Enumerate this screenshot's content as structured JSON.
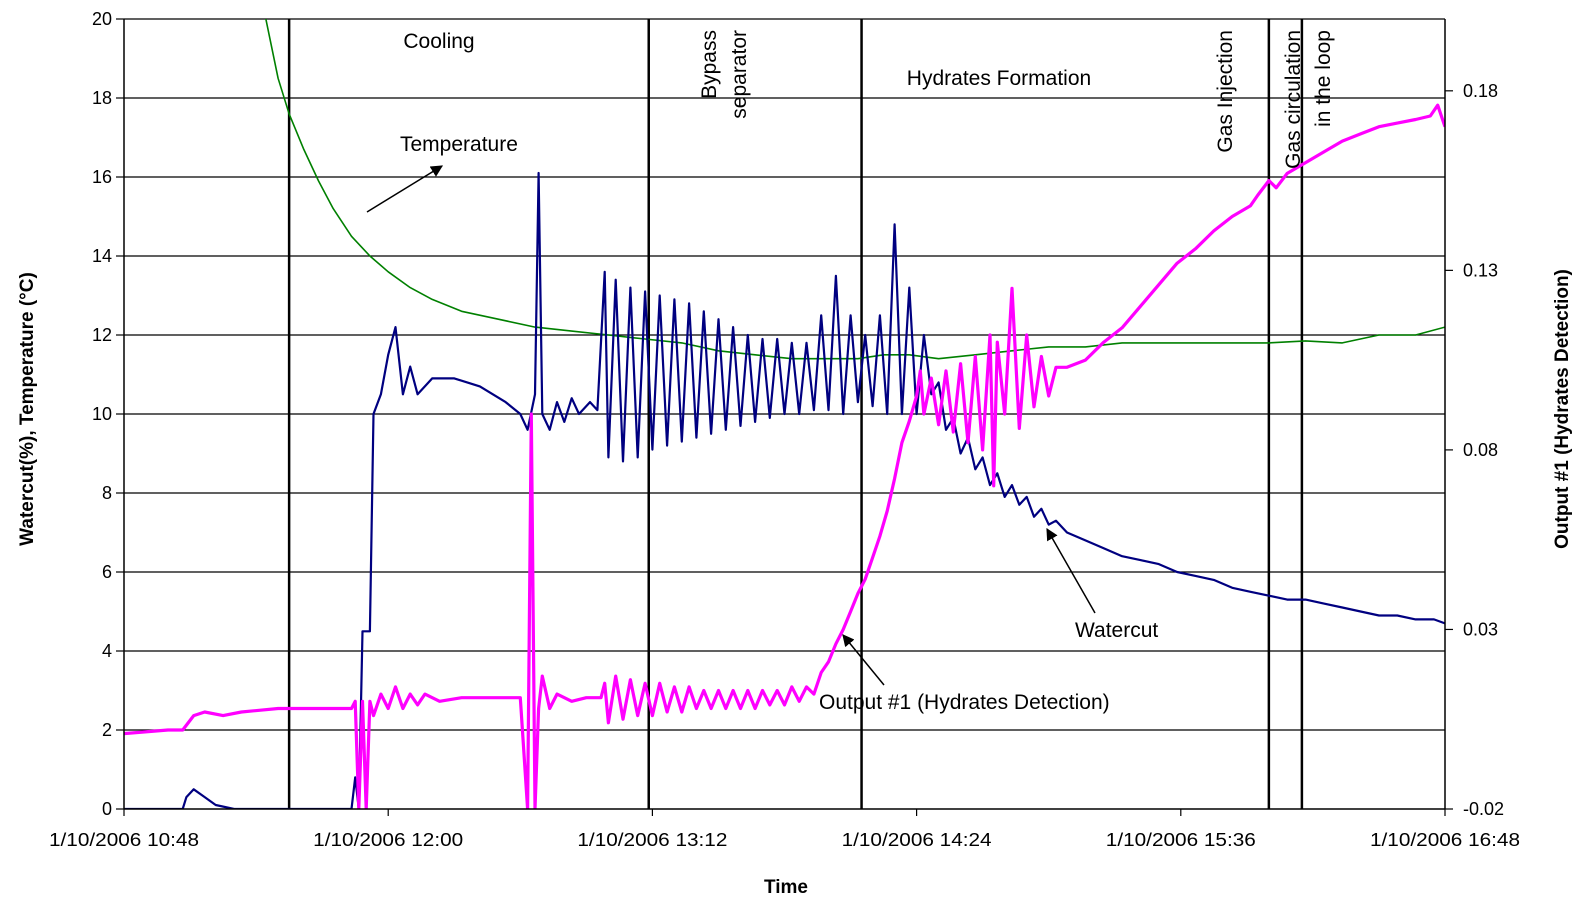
{
  "chart_data": {
    "type": "line",
    "title": "",
    "xlabel": "Time",
    "ylabel_left": "Watercut(%), Temperature (°C)",
    "ylabel_right": "Output #1 (Hydrates Detection)",
    "x_range_minutes": [
      648,
      1008
    ],
    "x_ticks": [
      {
        "t": 648,
        "label": "1/10/2006 10:48"
      },
      {
        "t": 720,
        "label": "1/10/2006 12:00"
      },
      {
        "t": 792,
        "label": "1/10/2006 13:12"
      },
      {
        "t": 864,
        "label": "1/10/2006 14:24"
      },
      {
        "t": 936,
        "label": "1/10/2006 15:36"
      },
      {
        "t": 1008,
        "label": "1/10/2006 16:48"
      }
    ],
    "y_left": {
      "min": 0,
      "max": 20,
      "ticks": [
        "0",
        "2",
        "4",
        "6",
        "8",
        "10",
        "12",
        "14",
        "16",
        "18",
        "20"
      ]
    },
    "y_right": {
      "min": -0.02,
      "max": 0.2,
      "ticks": [
        {
          "v": -0.02,
          "label": "-0.02"
        },
        {
          "v": 0.03,
          "label": "0.03"
        },
        {
          "v": 0.08,
          "label": "0.08"
        },
        {
          "v": 0.13,
          "label": "0.13"
        },
        {
          "v": 0.18,
          "label": "0.18"
        }
      ]
    },
    "grid": "horizontal",
    "phase_lines_t": [
      693,
      791,
      849,
      960,
      969
    ],
    "phase_labels": [
      {
        "text": "Cooling"
      },
      {
        "lines": [
          "Bypass",
          "separator"
        ]
      },
      {
        "text": "Hydrates Formation"
      },
      {
        "text": "Gas Injection"
      },
      {
        "lines": [
          "Gas circulation",
          "in the loop"
        ]
      }
    ],
    "series": [
      {
        "name": "Temperature",
        "axis": "left",
        "color": "#008000",
        "points": [
          [
            686,
            20.3
          ],
          [
            690,
            18.5
          ],
          [
            693,
            17.6
          ],
          [
            697,
            16.7
          ],
          [
            701,
            15.9
          ],
          [
            705,
            15.2
          ],
          [
            710,
            14.5
          ],
          [
            715,
            14.0
          ],
          [
            720,
            13.6
          ],
          [
            726,
            13.2
          ],
          [
            732,
            12.9
          ],
          [
            740,
            12.6
          ],
          [
            750,
            12.4
          ],
          [
            760,
            12.2
          ],
          [
            770,
            12.1
          ],
          [
            780,
            12.0
          ],
          [
            790,
            11.9
          ],
          [
            800,
            11.8
          ],
          [
            810,
            11.6
          ],
          [
            820,
            11.5
          ],
          [
            830,
            11.4
          ],
          [
            840,
            11.4
          ],
          [
            848,
            11.4
          ],
          [
            855,
            11.5
          ],
          [
            862,
            11.5
          ],
          [
            870,
            11.4
          ],
          [
            880,
            11.5
          ],
          [
            890,
            11.6
          ],
          [
            900,
            11.7
          ],
          [
            910,
            11.7
          ],
          [
            920,
            11.8
          ],
          [
            930,
            11.8
          ],
          [
            940,
            11.8
          ],
          [
            950,
            11.8
          ],
          [
            960,
            11.8
          ],
          [
            970,
            11.85
          ],
          [
            980,
            11.8
          ],
          [
            990,
            12.0
          ],
          [
            1000,
            12.0
          ],
          [
            1008,
            12.2
          ]
        ]
      },
      {
        "name": "Watercut",
        "axis": "left",
        "color": "#000080",
        "points": [
          [
            648,
            0
          ],
          [
            664,
            0
          ],
          [
            665,
            0.3
          ],
          [
            667,
            0.5
          ],
          [
            670,
            0.3
          ],
          [
            673,
            0.1
          ],
          [
            678,
            0
          ],
          [
            693,
            0
          ],
          [
            710,
            0
          ],
          [
            711,
            0.8
          ],
          [
            712,
            0
          ],
          [
            713,
            4.5
          ],
          [
            715,
            4.5
          ],
          [
            716,
            10
          ],
          [
            718,
            10.5
          ],
          [
            720,
            11.5
          ],
          [
            722,
            12.2
          ],
          [
            724,
            10.5
          ],
          [
            726,
            11.2
          ],
          [
            728,
            10.5
          ],
          [
            732,
            10.9
          ],
          [
            738,
            10.9
          ],
          [
            745,
            10.7
          ],
          [
            752,
            10.3
          ],
          [
            756,
            10.0
          ],
          [
            758,
            9.6
          ],
          [
            760,
            10.5
          ],
          [
            761,
            16.1
          ],
          [
            762,
            10.0
          ],
          [
            764,
            9.6
          ],
          [
            766,
            10.3
          ],
          [
            768,
            9.8
          ],
          [
            770,
            10.4
          ],
          [
            772,
            10.0
          ],
          [
            775,
            10.3
          ],
          [
            777,
            10.1
          ],
          [
            779,
            13.6
          ],
          [
            780,
            8.9
          ],
          [
            782,
            13.4
          ],
          [
            784,
            8.8
          ],
          [
            786,
            13.2
          ],
          [
            788,
            8.9
          ],
          [
            790,
            13.1
          ],
          [
            792,
            9.1
          ],
          [
            794,
            13.0
          ],
          [
            796,
            9.2
          ],
          [
            798,
            12.9
          ],
          [
            800,
            9.3
          ],
          [
            802,
            12.8
          ],
          [
            804,
            9.4
          ],
          [
            806,
            12.6
          ],
          [
            808,
            9.5
          ],
          [
            810,
            12.4
          ],
          [
            812,
            9.6
          ],
          [
            814,
            12.2
          ],
          [
            816,
            9.7
          ],
          [
            818,
            12.0
          ],
          [
            820,
            9.8
          ],
          [
            822,
            11.9
          ],
          [
            824,
            9.9
          ],
          [
            826,
            11.9
          ],
          [
            828,
            10.0
          ],
          [
            830,
            11.8
          ],
          [
            832,
            10.0
          ],
          [
            834,
            11.8
          ],
          [
            836,
            10.1
          ],
          [
            838,
            12.5
          ],
          [
            840,
            10.1
          ],
          [
            842,
            13.5
          ],
          [
            844,
            10.0
          ],
          [
            846,
            12.5
          ],
          [
            848,
            10.3
          ],
          [
            850,
            12.0
          ],
          [
            852,
            10.2
          ],
          [
            854,
            12.5
          ],
          [
            856,
            10.0
          ],
          [
            858,
            14.8
          ],
          [
            860,
            10.0
          ],
          [
            862,
            13.2
          ],
          [
            864,
            10.0
          ],
          [
            866,
            12.0
          ],
          [
            868,
            10.5
          ],
          [
            870,
            10.8
          ],
          [
            872,
            9.6
          ],
          [
            874,
            9.9
          ],
          [
            876,
            9.0
          ],
          [
            878,
            9.4
          ],
          [
            880,
            8.6
          ],
          [
            882,
            8.9
          ],
          [
            884,
            8.2
          ],
          [
            886,
            8.5
          ],
          [
            888,
            7.9
          ],
          [
            890,
            8.2
          ],
          [
            892,
            7.7
          ],
          [
            894,
            7.9
          ],
          [
            896,
            7.4
          ],
          [
            898,
            7.6
          ],
          [
            900,
            7.2
          ],
          [
            902,
            7.3
          ],
          [
            905,
            7.0
          ],
          [
            910,
            6.8
          ],
          [
            915,
            6.6
          ],
          [
            920,
            6.4
          ],
          [
            925,
            6.3
          ],
          [
            930,
            6.2
          ],
          [
            935,
            6.0
          ],
          [
            940,
            5.9
          ],
          [
            945,
            5.8
          ],
          [
            950,
            5.6
          ],
          [
            955,
            5.5
          ],
          [
            960,
            5.4
          ],
          [
            965,
            5.3
          ],
          [
            970,
            5.3
          ],
          [
            975,
            5.2
          ],
          [
            980,
            5.1
          ],
          [
            985,
            5.0
          ],
          [
            990,
            4.9
          ],
          [
            995,
            4.9
          ],
          [
            1000,
            4.8
          ],
          [
            1005,
            4.8
          ],
          [
            1008,
            4.7
          ]
        ]
      },
      {
        "name": "Output #1 (Hydrates Detection)",
        "axis": "right",
        "color": "#ff00ff",
        "points": [
          [
            648,
            0.001
          ],
          [
            660,
            0.002
          ],
          [
            664,
            0.002
          ],
          [
            667,
            0.006
          ],
          [
            670,
            0.007
          ],
          [
            675,
            0.006
          ],
          [
            680,
            0.007
          ],
          [
            690,
            0.008
          ],
          [
            700,
            0.008
          ],
          [
            705,
            0.008
          ],
          [
            710,
            0.008
          ],
          [
            711,
            0.01
          ],
          [
            712,
            -0.02
          ],
          [
            713,
            0.01
          ],
          [
            714,
            -0.02
          ],
          [
            715,
            0.01
          ],
          [
            716,
            0.006
          ],
          [
            718,
            0.012
          ],
          [
            720,
            0.008
          ],
          [
            722,
            0.014
          ],
          [
            724,
            0.008
          ],
          [
            726,
            0.012
          ],
          [
            728,
            0.009
          ],
          [
            730,
            0.012
          ],
          [
            734,
            0.01
          ],
          [
            740,
            0.011
          ],
          [
            746,
            0.011
          ],
          [
            752,
            0.011
          ],
          [
            756,
            0.011
          ],
          [
            758,
            -0.02
          ],
          [
            759,
            0.09
          ],
          [
            760,
            -0.02
          ],
          [
            761,
            0.008
          ],
          [
            762,
            0.017
          ],
          [
            764,
            0.008
          ],
          [
            766,
            0.012
          ],
          [
            770,
            0.01
          ],
          [
            774,
            0.011
          ],
          [
            778,
            0.011
          ],
          [
            779,
            0.015
          ],
          [
            780,
            0.004
          ],
          [
            782,
            0.017
          ],
          [
            784,
            0.005
          ],
          [
            786,
            0.016
          ],
          [
            788,
            0.006
          ],
          [
            790,
            0.015
          ],
          [
            792,
            0.006
          ],
          [
            794,
            0.015
          ],
          [
            796,
            0.007
          ],
          [
            798,
            0.014
          ],
          [
            800,
            0.007
          ],
          [
            802,
            0.014
          ],
          [
            804,
            0.008
          ],
          [
            806,
            0.013
          ],
          [
            808,
            0.008
          ],
          [
            810,
            0.013
          ],
          [
            812,
            0.008
          ],
          [
            814,
            0.013
          ],
          [
            816,
            0.008
          ],
          [
            818,
            0.013
          ],
          [
            820,
            0.008
          ],
          [
            822,
            0.013
          ],
          [
            824,
            0.009
          ],
          [
            826,
            0.013
          ],
          [
            828,
            0.009
          ],
          [
            830,
            0.014
          ],
          [
            832,
            0.01
          ],
          [
            834,
            0.014
          ],
          [
            836,
            0.012
          ],
          [
            838,
            0.018
          ],
          [
            840,
            0.021
          ],
          [
            842,
            0.026
          ],
          [
            844,
            0.03
          ],
          [
            846,
            0.035
          ],
          [
            848,
            0.04
          ],
          [
            850,
            0.044
          ],
          [
            852,
            0.05
          ],
          [
            854,
            0.056
          ],
          [
            856,
            0.063
          ],
          [
            858,
            0.072
          ],
          [
            860,
            0.082
          ],
          [
            862,
            0.088
          ],
          [
            864,
            0.095
          ],
          [
            865,
            0.102
          ],
          [
            866,
            0.09
          ],
          [
            868,
            0.1
          ],
          [
            870,
            0.087
          ],
          [
            872,
            0.102
          ],
          [
            874,
            0.085
          ],
          [
            876,
            0.104
          ],
          [
            878,
            0.082
          ],
          [
            880,
            0.106
          ],
          [
            882,
            0.08
          ],
          [
            884,
            0.112
          ],
          [
            885,
            0.07
          ],
          [
            886,
            0.11
          ],
          [
            888,
            0.09
          ],
          [
            890,
            0.125
          ],
          [
            892,
            0.086
          ],
          [
            894,
            0.112
          ],
          [
            896,
            0.092
          ],
          [
            898,
            0.106
          ],
          [
            900,
            0.095
          ],
          [
            902,
            0.103
          ],
          [
            905,
            0.103
          ],
          [
            910,
            0.105
          ],
          [
            915,
            0.11
          ],
          [
            920,
            0.114
          ],
          [
            925,
            0.12
          ],
          [
            930,
            0.126
          ],
          [
            935,
            0.132
          ],
          [
            940,
            0.136
          ],
          [
            945,
            0.141
          ],
          [
            950,
            0.145
          ],
          [
            955,
            0.148
          ],
          [
            957,
            0.151
          ],
          [
            960,
            0.155
          ],
          [
            962,
            0.153
          ],
          [
            965,
            0.157
          ],
          [
            970,
            0.16
          ],
          [
            975,
            0.163
          ],
          [
            980,
            0.166
          ],
          [
            985,
            0.168
          ],
          [
            990,
            0.17
          ],
          [
            995,
            0.171
          ],
          [
            1000,
            0.172
          ],
          [
            1004,
            0.173
          ],
          [
            1006,
            0.176
          ],
          [
            1008,
            0.17
          ]
        ]
      }
    ],
    "annotations": [
      {
        "text": "Temperature"
      },
      {
        "text": "Watercut"
      },
      {
        "text": "Output #1 (Hydrates Detection)"
      }
    ]
  }
}
